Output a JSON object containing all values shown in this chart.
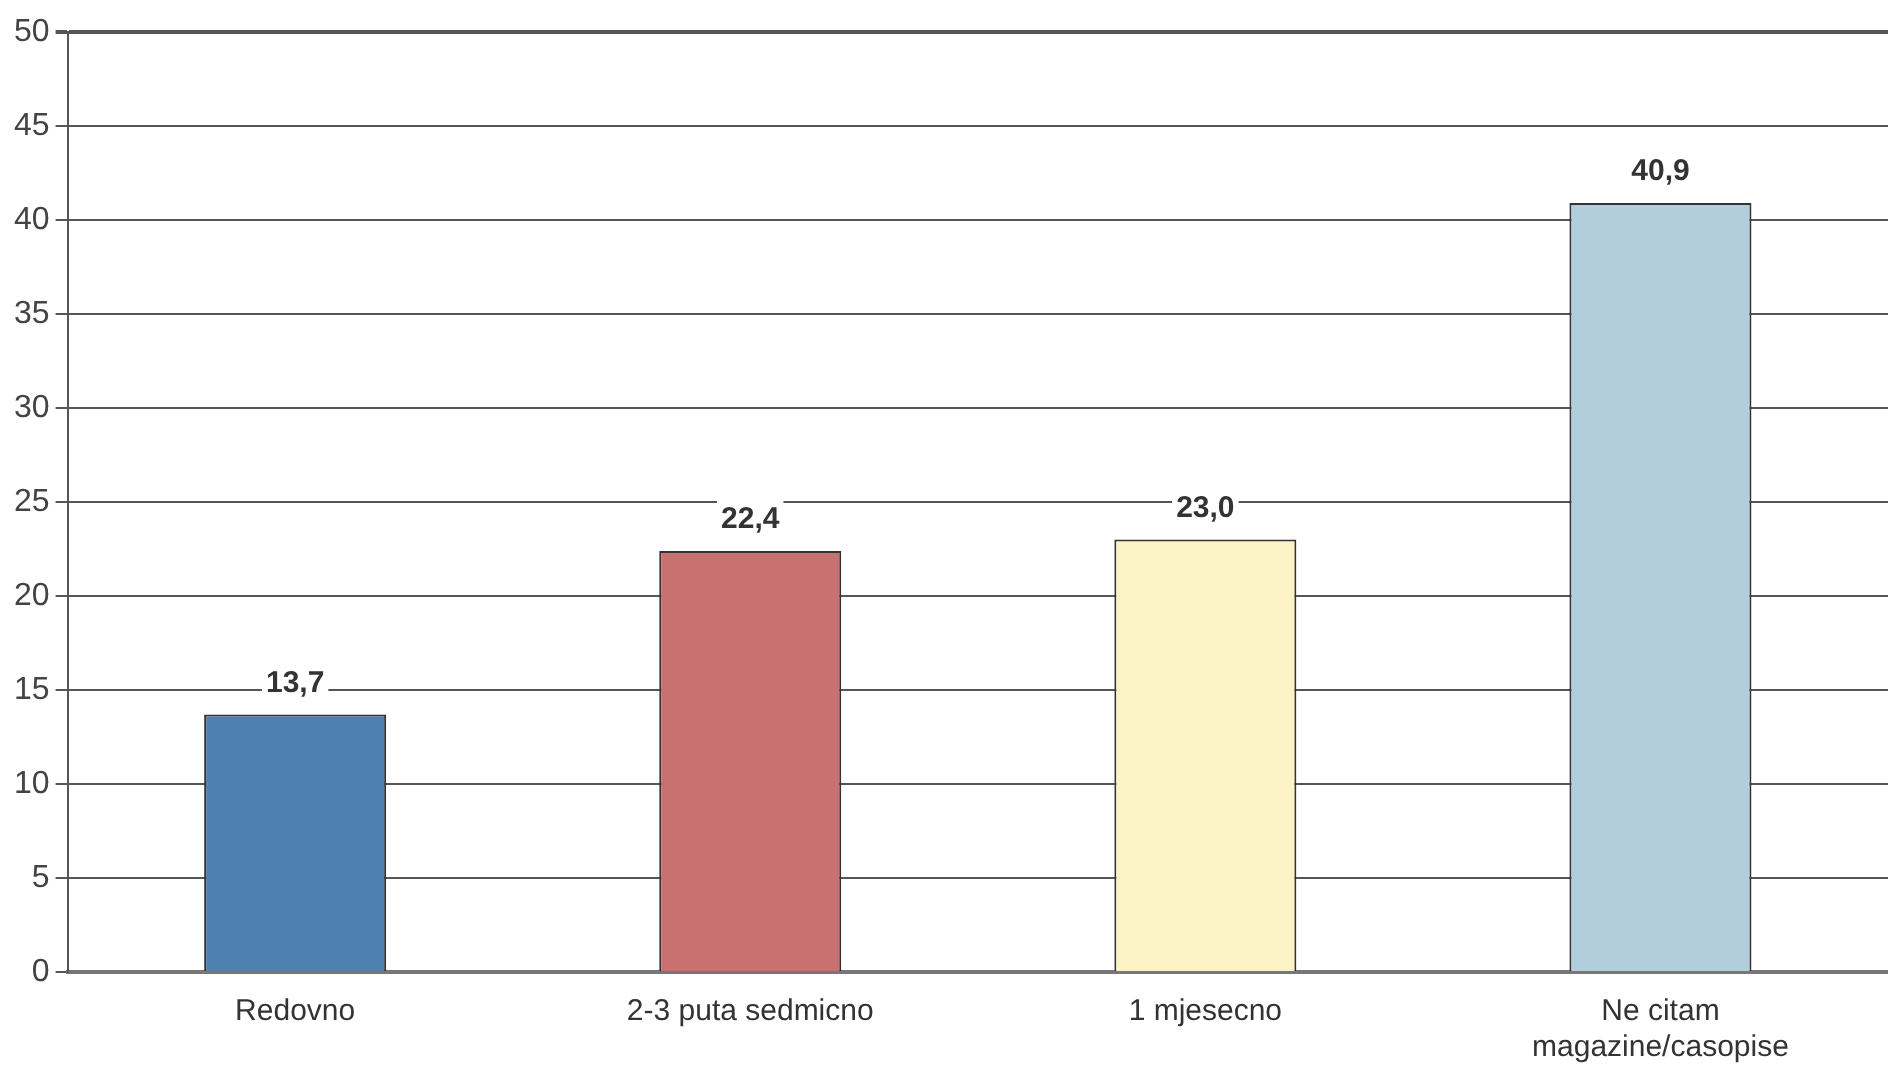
{
  "chart_data": {
    "type": "bar",
    "categories": [
      "Redovno",
      "2-3 puta sedmicno",
      "1 mjesecno",
      "Ne citam magazine/casopise"
    ],
    "values": [
      13.7,
      22.4,
      23.0,
      40.9
    ],
    "colors": [
      "#4f81b0",
      "#c87170",
      "#fbf2c6",
      "#b2cddb"
    ],
    "value_labels": [
      "13,7",
      "22,4",
      "23,0",
      "40,9"
    ],
    "ylim": [
      0,
      50
    ],
    "yticks": [
      0,
      5,
      10,
      15,
      20,
      25,
      30,
      35,
      40,
      45,
      50
    ],
    "grid": "y",
    "legend": false
  }
}
